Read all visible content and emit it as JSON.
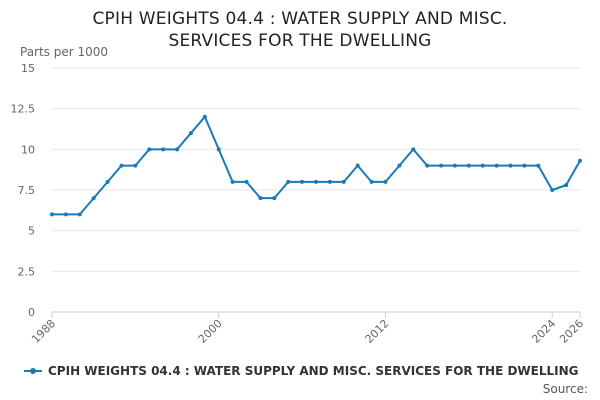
{
  "chart_data": {
    "type": "line",
    "title_lines": [
      "CPIH WEIGHTS 04.4 : WATER SUPPLY AND MISC.",
      "SERVICES FOR THE DWELLING"
    ],
    "ylabel": "Parts per 1000",
    "ylim": [
      0,
      15
    ],
    "y_ticks": [
      "0",
      "2.5",
      "5",
      "7.5",
      "10",
      "12.5",
      "15"
    ],
    "xlim": [
      1988,
      2026
    ],
    "x_ticks": [
      "1988",
      "2000",
      "2012",
      "2024",
      "2026"
    ],
    "grid": true,
    "legend_position": "bottom-left",
    "series": [
      {
        "name": "CPIH WEIGHTS 04.4 : WATER SUPPLY AND MISC. SERVICES FOR THE DWELLING",
        "color": "#1a7ab8",
        "x": [
          1988,
          1989,
          1990,
          1991,
          1992,
          1993,
          1994,
          1995,
          1996,
          1997,
          1998,
          1999,
          2000,
          2001,
          2002,
          2003,
          2004,
          2005,
          2006,
          2007,
          2008,
          2009,
          2010,
          2011,
          2012,
          2013,
          2014,
          2015,
          2016,
          2017,
          2018,
          2019,
          2020,
          2021,
          2022,
          2023,
          2024,
          2025,
          2026
        ],
        "values": [
          6,
          6,
          6,
          7,
          8,
          9,
          9,
          10,
          10,
          10,
          11,
          12,
          10,
          8,
          8,
          7,
          7,
          8,
          8,
          8,
          8,
          8,
          9,
          8,
          8,
          9,
          10,
          9,
          9,
          9,
          9,
          9,
          9,
          9,
          9,
          9,
          7.5,
          7.8,
          9.3
        ]
      }
    ]
  },
  "source_label": "Source:"
}
